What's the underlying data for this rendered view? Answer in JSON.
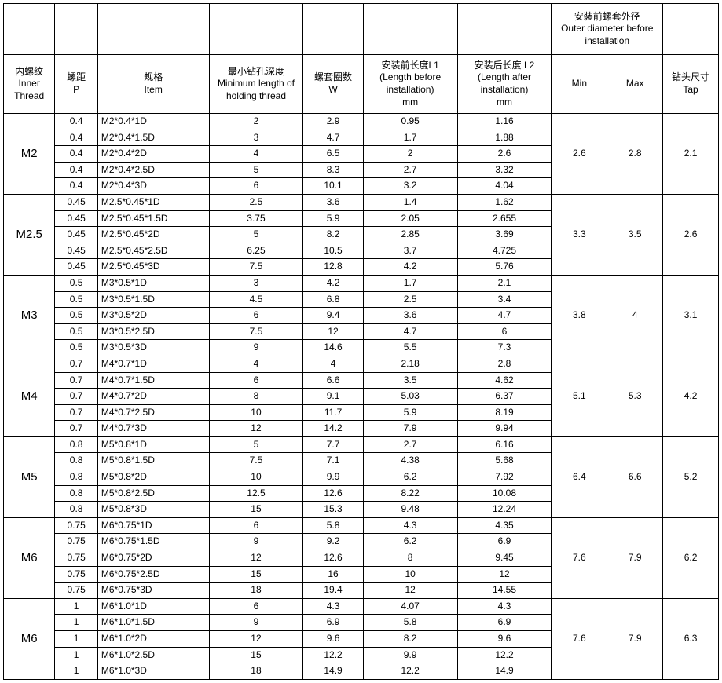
{
  "headers": {
    "outer_diam_top": "安装前螺套外径\nOuter diameter before installation",
    "inner_thread": "内螺纹\nInner\nThread",
    "pitch": "螺距\nP",
    "item": "规格\nItem",
    "min_holding": "最小钻孔深度\nMinimum length of holding thread",
    "turns": "螺套圈数\nW",
    "l1": "安装前长度L1\n(Length before installation)\nmm",
    "l2": "安装后长度 L2\n(Length after installation)\nmm",
    "min": "Min",
    "max": "Max",
    "tap": "钻头尺寸\nTap"
  },
  "groups": [
    {
      "label": "M2",
      "min": "2.6",
      "max": "2.8",
      "tap": "2.1",
      "rows": [
        {
          "p": "0.4",
          "item": "M2*0.4*1D",
          "mh": "2",
          "w": "2.9",
          "l1": "0.95",
          "l2": "1.16"
        },
        {
          "p": "0.4",
          "item": "M2*0.4*1.5D",
          "mh": "3",
          "w": "4.7",
          "l1": "1.7",
          "l2": "1.88"
        },
        {
          "p": "0.4",
          "item": "M2*0.4*2D",
          "mh": "4",
          "w": "6.5",
          "l1": "2",
          "l2": "2.6"
        },
        {
          "p": "0.4",
          "item": "M2*0.4*2.5D",
          "mh": "5",
          "w": "8.3",
          "l1": "2.7",
          "l2": "3.32"
        },
        {
          "p": "0.4",
          "item": "M2*0.4*3D",
          "mh": "6",
          "w": "10.1",
          "l1": "3.2",
          "l2": "4.04"
        }
      ]
    },
    {
      "label": "M2.5",
      "min": "3.3",
      "max": "3.5",
      "tap": "2.6",
      "rows": [
        {
          "p": "0.45",
          "item": "M2.5*0.45*1D",
          "mh": "2.5",
          "w": "3.6",
          "l1": "1.4",
          "l2": "1.62"
        },
        {
          "p": "0.45",
          "item": "M2.5*0.45*1.5D",
          "mh": "3.75",
          "w": "5.9",
          "l1": "2.05",
          "l2": "2.655"
        },
        {
          "p": "0.45",
          "item": "M2.5*0.45*2D",
          "mh": "5",
          "w": "8.2",
          "l1": "2.85",
          "l2": "3.69"
        },
        {
          "p": "0.45",
          "item": "M2.5*0.45*2.5D",
          "mh": "6.25",
          "w": "10.5",
          "l1": "3.7",
          "l2": "4.725"
        },
        {
          "p": "0.45",
          "item": "M2.5*0.45*3D",
          "mh": "7.5",
          "w": "12.8",
          "l1": "4.2",
          "l2": "5.76"
        }
      ]
    },
    {
      "label": "M3",
      "min": "3.8",
      "max": "4",
      "tap": "3.1",
      "rows": [
        {
          "p": "0.5",
          "item": "M3*0.5*1D",
          "mh": "3",
          "w": "4.2",
          "l1": "1.7",
          "l2": "2.1"
        },
        {
          "p": "0.5",
          "item": "M3*0.5*1.5D",
          "mh": "4.5",
          "w": "6.8",
          "l1": "2.5",
          "l2": "3.4"
        },
        {
          "p": "0.5",
          "item": "M3*0.5*2D",
          "mh": "6",
          "w": "9.4",
          "l1": "3.6",
          "l2": "4.7"
        },
        {
          "p": "0.5",
          "item": "M3*0.5*2.5D",
          "mh": "7.5",
          "w": "12",
          "l1": "4.7",
          "l2": "6"
        },
        {
          "p": "0.5",
          "item": "M3*0.5*3D",
          "mh": "9",
          "w": "14.6",
          "l1": "5.5",
          "l2": "7.3"
        }
      ]
    },
    {
      "label": "M4",
      "min": "5.1",
      "max": "5.3",
      "tap": "4.2",
      "rows": [
        {
          "p": "0.7",
          "item": "M4*0.7*1D",
          "mh": "4",
          "w": "4",
          "l1": "2.18",
          "l2": "2.8"
        },
        {
          "p": "0.7",
          "item": "M4*0.7*1.5D",
          "mh": "6",
          "w": "6.6",
          "l1": "3.5",
          "l2": "4.62"
        },
        {
          "p": "0.7",
          "item": "M4*0.7*2D",
          "mh": "8",
          "w": "9.1",
          "l1": "5.03",
          "l2": "6.37"
        },
        {
          "p": "0.7",
          "item": "M4*0.7*2.5D",
          "mh": "10",
          "w": "11.7",
          "l1": "5.9",
          "l2": "8.19"
        },
        {
          "p": "0.7",
          "item": "M4*0.7*3D",
          "mh": "12",
          "w": "14.2",
          "l1": "7.9",
          "l2": "9.94"
        }
      ]
    },
    {
      "label": "M5",
      "min": "6.4",
      "max": "6.6",
      "tap": "5.2",
      "rows": [
        {
          "p": "0.8",
          "item": "M5*0.8*1D",
          "mh": "5",
          "w": "7.7",
          "l1": "2.7",
          "l2": "6.16"
        },
        {
          "p": "0.8",
          "item": "M5*0.8*1.5D",
          "mh": "7.5",
          "w": "7.1",
          "l1": "4.38",
          "l2": "5.68"
        },
        {
          "p": "0.8",
          "item": "M5*0.8*2D",
          "mh": "10",
          "w": "9.9",
          "l1": "6.2",
          "l2": "7.92"
        },
        {
          "p": "0.8",
          "item": "M5*0.8*2.5D",
          "mh": "12.5",
          "w": "12.6",
          "l1": "8.22",
          "l2": "10.08"
        },
        {
          "p": "0.8",
          "item": "M5*0.8*3D",
          "mh": "15",
          "w": "15.3",
          "l1": "9.48",
          "l2": "12.24"
        }
      ]
    },
    {
      "label": "M6",
      "min": "7.6",
      "max": "7.9",
      "tap": "6.2",
      "rows": [
        {
          "p": "0.75",
          "item": "M6*0.75*1D",
          "mh": "6",
          "w": "5.8",
          "l1": "4.3",
          "l2": "4.35"
        },
        {
          "p": "0.75",
          "item": "M6*0.75*1.5D",
          "mh": "9",
          "w": "9.2",
          "l1": "6.2",
          "l2": "6.9"
        },
        {
          "p": "0.75",
          "item": "M6*0.75*2D",
          "mh": "12",
          "w": "12.6",
          "l1": "8",
          "l2": "9.45"
        },
        {
          "p": "0.75",
          "item": "M6*0.75*2.5D",
          "mh": "15",
          "w": "16",
          "l1": "10",
          "l2": "12"
        },
        {
          "p": "0.75",
          "item": "M6*0.75*3D",
          "mh": "18",
          "w": "19.4",
          "l1": "12",
          "l2": "14.55"
        }
      ]
    },
    {
      "label": "M6",
      "min": "7.6",
      "max": "7.9",
      "tap": "6.3",
      "rows": [
        {
          "p": "1",
          "item": "M6*1.0*1D",
          "mh": "6",
          "w": "4.3",
          "l1": "4.07",
          "l2": "4.3"
        },
        {
          "p": "1",
          "item": "M6*1.0*1.5D",
          "mh": "9",
          "w": "6.9",
          "l1": "5.8",
          "l2": "6.9"
        },
        {
          "p": "1",
          "item": "M6*1.0*2D",
          "mh": "12",
          "w": "9.6",
          "l1": "8.2",
          "l2": "9.6"
        },
        {
          "p": "1",
          "item": "M6*1.0*2.5D",
          "mh": "15",
          "w": "12.2",
          "l1": "9.9",
          "l2": "12.2"
        },
        {
          "p": "1",
          "item": "M6*1.0*3D",
          "mh": "18",
          "w": "14.9",
          "l1": "12.2",
          "l2": "14.9"
        }
      ]
    }
  ]
}
